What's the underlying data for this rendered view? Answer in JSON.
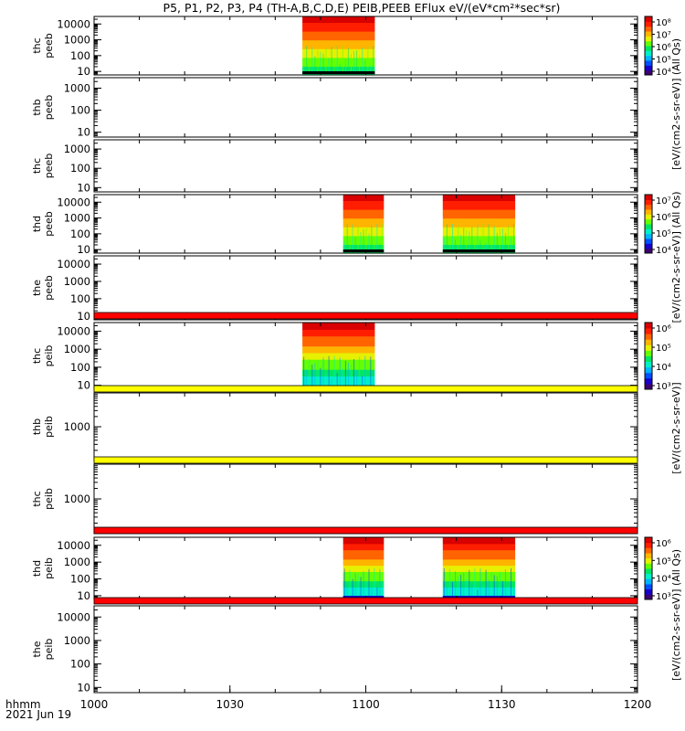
{
  "title": "P5, P1, P2, P3, P4 (TH-A,B,C,D,E) PEIB,PEEB EFlux eV/(eV*cm²*sec*sr)",
  "colorbar_unit_energy": "[eV/(cm2-s-sr-eV)] (All Qs)",
  "colorbar_unit_short": "[eV/(cm2-s-sr-eV)]",
  "x_axis": {
    "time_label": "hhmm",
    "date_label": "2021 Jun 19"
  },
  "colors": {
    "spectrogram_scale": [
      "#3c0070",
      "#1800c8",
      "#0050ff",
      "#00b4ff",
      "#00f0c8",
      "#00e664",
      "#64ff00",
      "#e6f000",
      "#ffb400",
      "#ff6400",
      "#ff1e00",
      "#d80000"
    ],
    "flag_red": "#ff0000",
    "flag_yellow": "#ffff00",
    "frame": "#000000"
  },
  "chart_data": {
    "type": "heatmap",
    "x_unit": "UT hhmm",
    "xlim": [
      "10:00",
      "12:00"
    ],
    "x_ticks": [
      "1000",
      "1030",
      "1100",
      "1130",
      "1200"
    ],
    "y_scale": "log",
    "panels": [
      {
        "probe": "thc",
        "instrument": "peeb",
        "ylim": [
          6,
          30000
        ],
        "y_ticks": [
          "10000",
          "1000",
          "100",
          "10"
        ],
        "intervals": [
          {
            "start": "10:46",
            "end": "11:02"
          }
        ],
        "colorbar": {
          "tick_labels": [
            "10⁸",
            "10⁷",
            "10⁶",
            "10⁵",
            "10⁴"
          ]
        }
      },
      {
        "probe": "thb",
        "instrument": "peeb",
        "ylim": [
          6,
          3000
        ],
        "y_ticks": [
          "1000",
          "100",
          "10"
        ],
        "intervals": []
      },
      {
        "probe": "thc",
        "instrument": "peeb",
        "ylim": [
          6,
          3000
        ],
        "y_ticks": [
          "1000",
          "100",
          "10"
        ],
        "intervals": []
      },
      {
        "probe": "thd",
        "instrument": "peeb",
        "ylim": [
          6,
          30000
        ],
        "y_ticks": [
          "10000",
          "1000",
          "100",
          "10"
        ],
        "intervals": [
          {
            "start": "10:55",
            "end": "11:04"
          },
          {
            "start": "11:17",
            "end": "11:33"
          }
        ],
        "colorbar": {
          "tick_labels": [
            "10⁷",
            "10⁶",
            "10⁵",
            "10⁴"
          ]
        }
      },
      {
        "probe": "the",
        "instrument": "peeb",
        "ylim": [
          6,
          30000
        ],
        "y_ticks": [
          "10000",
          "1000",
          "100",
          "10"
        ],
        "intervals": []
      },
      {
        "probe": "thc",
        "instrument": "peib",
        "ylim": [
          6,
          30000
        ],
        "y_ticks": [
          "10000",
          "1000",
          "100",
          "10"
        ],
        "intervals": [
          {
            "start": "10:46",
            "end": "11:02"
          }
        ],
        "colorbar": {
          "tick_labels": [
            "10⁶",
            "10⁵",
            "10⁴",
            "10³"
          ]
        }
      },
      {
        "probe": "thb",
        "instrument": "peib",
        "ylim": [
          100,
          10000
        ],
        "y_ticks": [
          "1000"
        ],
        "intervals": []
      },
      {
        "probe": "thc",
        "instrument": "peib",
        "ylim": [
          100,
          10000
        ],
        "y_ticks": [
          "1000"
        ],
        "intervals": []
      },
      {
        "probe": "thd",
        "instrument": "peib",
        "ylim": [
          6,
          30000
        ],
        "y_ticks": [
          "10000",
          "1000",
          "100",
          "10"
        ],
        "intervals": [
          {
            "start": "10:55",
            "end": "11:04"
          },
          {
            "start": "11:17",
            "end": "11:33"
          }
        ],
        "colorbar": {
          "tick_labels": [
            "10⁶",
            "10⁵",
            "10⁴",
            "10³"
          ]
        }
      },
      {
        "probe": "the",
        "instrument": "peib",
        "ylim": [
          6,
          30000
        ],
        "y_ticks": [
          "10000",
          "1000",
          "100",
          "10"
        ],
        "intervals": []
      }
    ],
    "flag_bars": [
      {
        "after_panel": 4,
        "color": "red"
      },
      {
        "after_panel": 5,
        "color": "yellow"
      },
      {
        "after_panel": 6,
        "color": "yellow"
      },
      {
        "after_panel": 7,
        "color": "red"
      },
      {
        "after_panel": 8,
        "color": "red"
      }
    ]
  }
}
